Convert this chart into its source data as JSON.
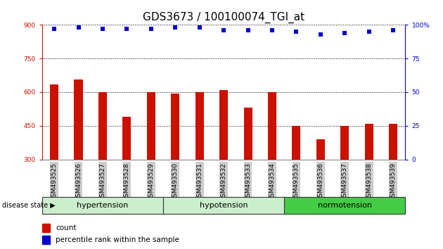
{
  "title": "GDS3673 / 100100074_TGI_at",
  "categories": [
    "GSM493525",
    "GSM493526",
    "GSM493527",
    "GSM493528",
    "GSM493529",
    "GSM493530",
    "GSM493531",
    "GSM493532",
    "GSM493533",
    "GSM493534",
    "GSM493535",
    "GSM493536",
    "GSM493537",
    "GSM493538",
    "GSM493539"
  ],
  "bar_values": [
    635,
    655,
    600,
    490,
    600,
    595,
    600,
    610,
    530,
    600,
    450,
    390,
    450,
    460,
    460
  ],
  "percentile_values": [
    97,
    98,
    97,
    97,
    97,
    98,
    98,
    96,
    96,
    96,
    95,
    93,
    94,
    95,
    96
  ],
  "ylim_left": [
    300,
    900
  ],
  "ylim_right": [
    0,
    100
  ],
  "yticks_left": [
    300,
    450,
    600,
    750,
    900
  ],
  "yticks_right": [
    0,
    25,
    50,
    75,
    100
  ],
  "bar_color": "#cc1100",
  "dot_color": "#0000cc",
  "background_color": "#ffffff",
  "left_axis_color": "#cc1100",
  "right_axis_color": "#0000cc",
  "title_fontsize": 11,
  "tick_fontsize": 6.5,
  "group_label_fontsize": 8,
  "legend_fontsize": 7.5,
  "group_defs": [
    {
      "label": "hypertension",
      "start": 0,
      "end": 5,
      "facecolor": "#cceecc",
      "edgecolor": "#333333"
    },
    {
      "label": "hypotension",
      "start": 5,
      "end": 10,
      "facecolor": "#cceecc",
      "edgecolor": "#333333"
    },
    {
      "label": "normotension",
      "start": 10,
      "end": 15,
      "facecolor": "#44cc44",
      "edgecolor": "#333333"
    }
  ],
  "legend_items": [
    "count",
    "percentile rank within the sample"
  ],
  "legend_colors": [
    "#cc1100",
    "#0000cc"
  ],
  "xtick_bg_color": "#cccccc"
}
